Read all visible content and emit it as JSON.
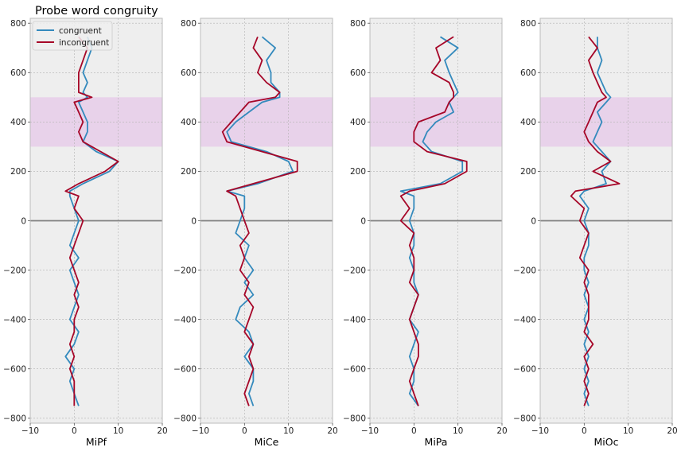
{
  "figure_title": "Probe word congruity",
  "chart_data": {
    "type": "line",
    "title": "Probe word congruity",
    "orientation": "vertical-time",
    "ylim": [
      -820,
      820
    ],
    "xlim": [
      -10,
      20
    ],
    "yticks": [
      -800,
      -600,
      -400,
      -200,
      0,
      200,
      400,
      600,
      800
    ],
    "xticks": [
      -10,
      0,
      10,
      20
    ],
    "ytick_labels": [
      "−800",
      "−600",
      "−400",
      "−200",
      "0",
      "200",
      "400",
      "600",
      "800"
    ],
    "xtick_labels": [
      "−10",
      "0",
      "10",
      "20"
    ],
    "shaded_band": {
      "y0": 300,
      "y1": 500,
      "color": "#e8d2ea"
    },
    "zero_line": 0,
    "grid": true,
    "legend": {
      "position": "top-left",
      "entries": [
        "congruent",
        "incongruent"
      ]
    },
    "colors": {
      "congruent": "#348abd",
      "incongruent": "#a60628",
      "axes_bg": "#eeeeee",
      "grid": "#b2b2b2",
      "zero": "#808080"
    },
    "y": [
      -750,
      -700,
      -650,
      -600,
      -550,
      -500,
      -450,
      -400,
      -350,
      -300,
      -250,
      -200,
      -150,
      -100,
      -50,
      0,
      50,
      100,
      120,
      150,
      200,
      240,
      280,
      320,
      360,
      400,
      440,
      480,
      500,
      520,
      560,
      600,
      650,
      700,
      745
    ],
    "panels": [
      {
        "xlabel": "MiPf",
        "series": [
          {
            "name": "congruent",
            "x": [
              1,
              0,
              -1,
              0,
              -2,
              0,
              1,
              -1,
              0,
              1,
              0,
              -1,
              1,
              -1,
              0,
              1,
              0,
              -1,
              -1,
              2,
              8,
              10,
              5,
              2,
              3,
              3,
              2,
              1,
              3,
              2,
              3,
              2,
              3,
              4,
              3
            ]
          },
          {
            "name": "incongruent",
            "x": [
              0,
              0,
              0,
              -1,
              0,
              -1,
              0,
              0,
              1,
              0,
              1,
              0,
              -1,
              0,
              1,
              2,
              0,
              1,
              -2,
              1,
              7,
              10,
              6,
              2,
              1,
              2,
              1,
              0,
              4,
              1,
              1,
              1,
              2,
              3,
              1
            ]
          }
        ]
      },
      {
        "xlabel": "MiCe",
        "series": [
          {
            "name": "congruent",
            "x": [
              2,
              1,
              2,
              2,
              0,
              2,
              1,
              -2,
              -1,
              2,
              0,
              2,
              0,
              1,
              -2,
              -1,
              0,
              0,
              -4,
              3,
              11,
              10,
              5,
              -3,
              -4,
              -2,
              1,
              4,
              8,
              8,
              6,
              6,
              5,
              7,
              4
            ]
          },
          {
            "name": "incongruent",
            "x": [
              1,
              0,
              1,
              2,
              1,
              2,
              0,
              1,
              2,
              0,
              1,
              -1,
              0,
              -1,
              1,
              0,
              -1,
              -2,
              -4,
              2,
              12,
              12,
              4,
              -4,
              -5,
              -3,
              -1,
              1,
              7,
              8,
              5,
              3,
              4,
              2,
              3
            ]
          }
        ]
      },
      {
        "xlabel": "MiPa",
        "series": [
          {
            "name": "congruent",
            "x": [
              1,
              -1,
              0,
              0,
              -1,
              0,
              1,
              -1,
              0,
              1,
              0,
              0,
              -1,
              0,
              0,
              -1,
              0,
              0,
              -3,
              6,
              11,
              11,
              4,
              2,
              3,
              5,
              9,
              8,
              9,
              10,
              9,
              8,
              7,
              10,
              6
            ]
          },
          {
            "name": "incongruent",
            "x": [
              1,
              0,
              -1,
              0,
              1,
              1,
              0,
              -1,
              0,
              1,
              -1,
              0,
              0,
              -1,
              0,
              -3,
              -1,
              -3,
              -1,
              7,
              12,
              12,
              3,
              0,
              0,
              1,
              7,
              8,
              9,
              9,
              8,
              4,
              6,
              5,
              9
            ]
          }
        ]
      },
      {
        "xlabel": "MiOc",
        "series": [
          {
            "name": "congruent",
            "x": [
              1,
              0,
              1,
              0,
              1,
              0,
              1,
              0,
              1,
              0,
              1,
              0,
              0,
              1,
              1,
              0,
              1,
              -1,
              0,
              5,
              4,
              6,
              4,
              2,
              3,
              4,
              3,
              5,
              6,
              5,
              4,
              3,
              4,
              3,
              3
            ]
          },
          {
            "name": "incongruent",
            "x": [
              0,
              1,
              0,
              1,
              0,
              2,
              0,
              1,
              1,
              1,
              0,
              1,
              -1,
              0,
              1,
              -1,
              0,
              -3,
              -2,
              8,
              2,
              6,
              3,
              1,
              0,
              1,
              2,
              3,
              5,
              4,
              3,
              2,
              1,
              3,
              1
            ]
          }
        ]
      }
    ]
  }
}
